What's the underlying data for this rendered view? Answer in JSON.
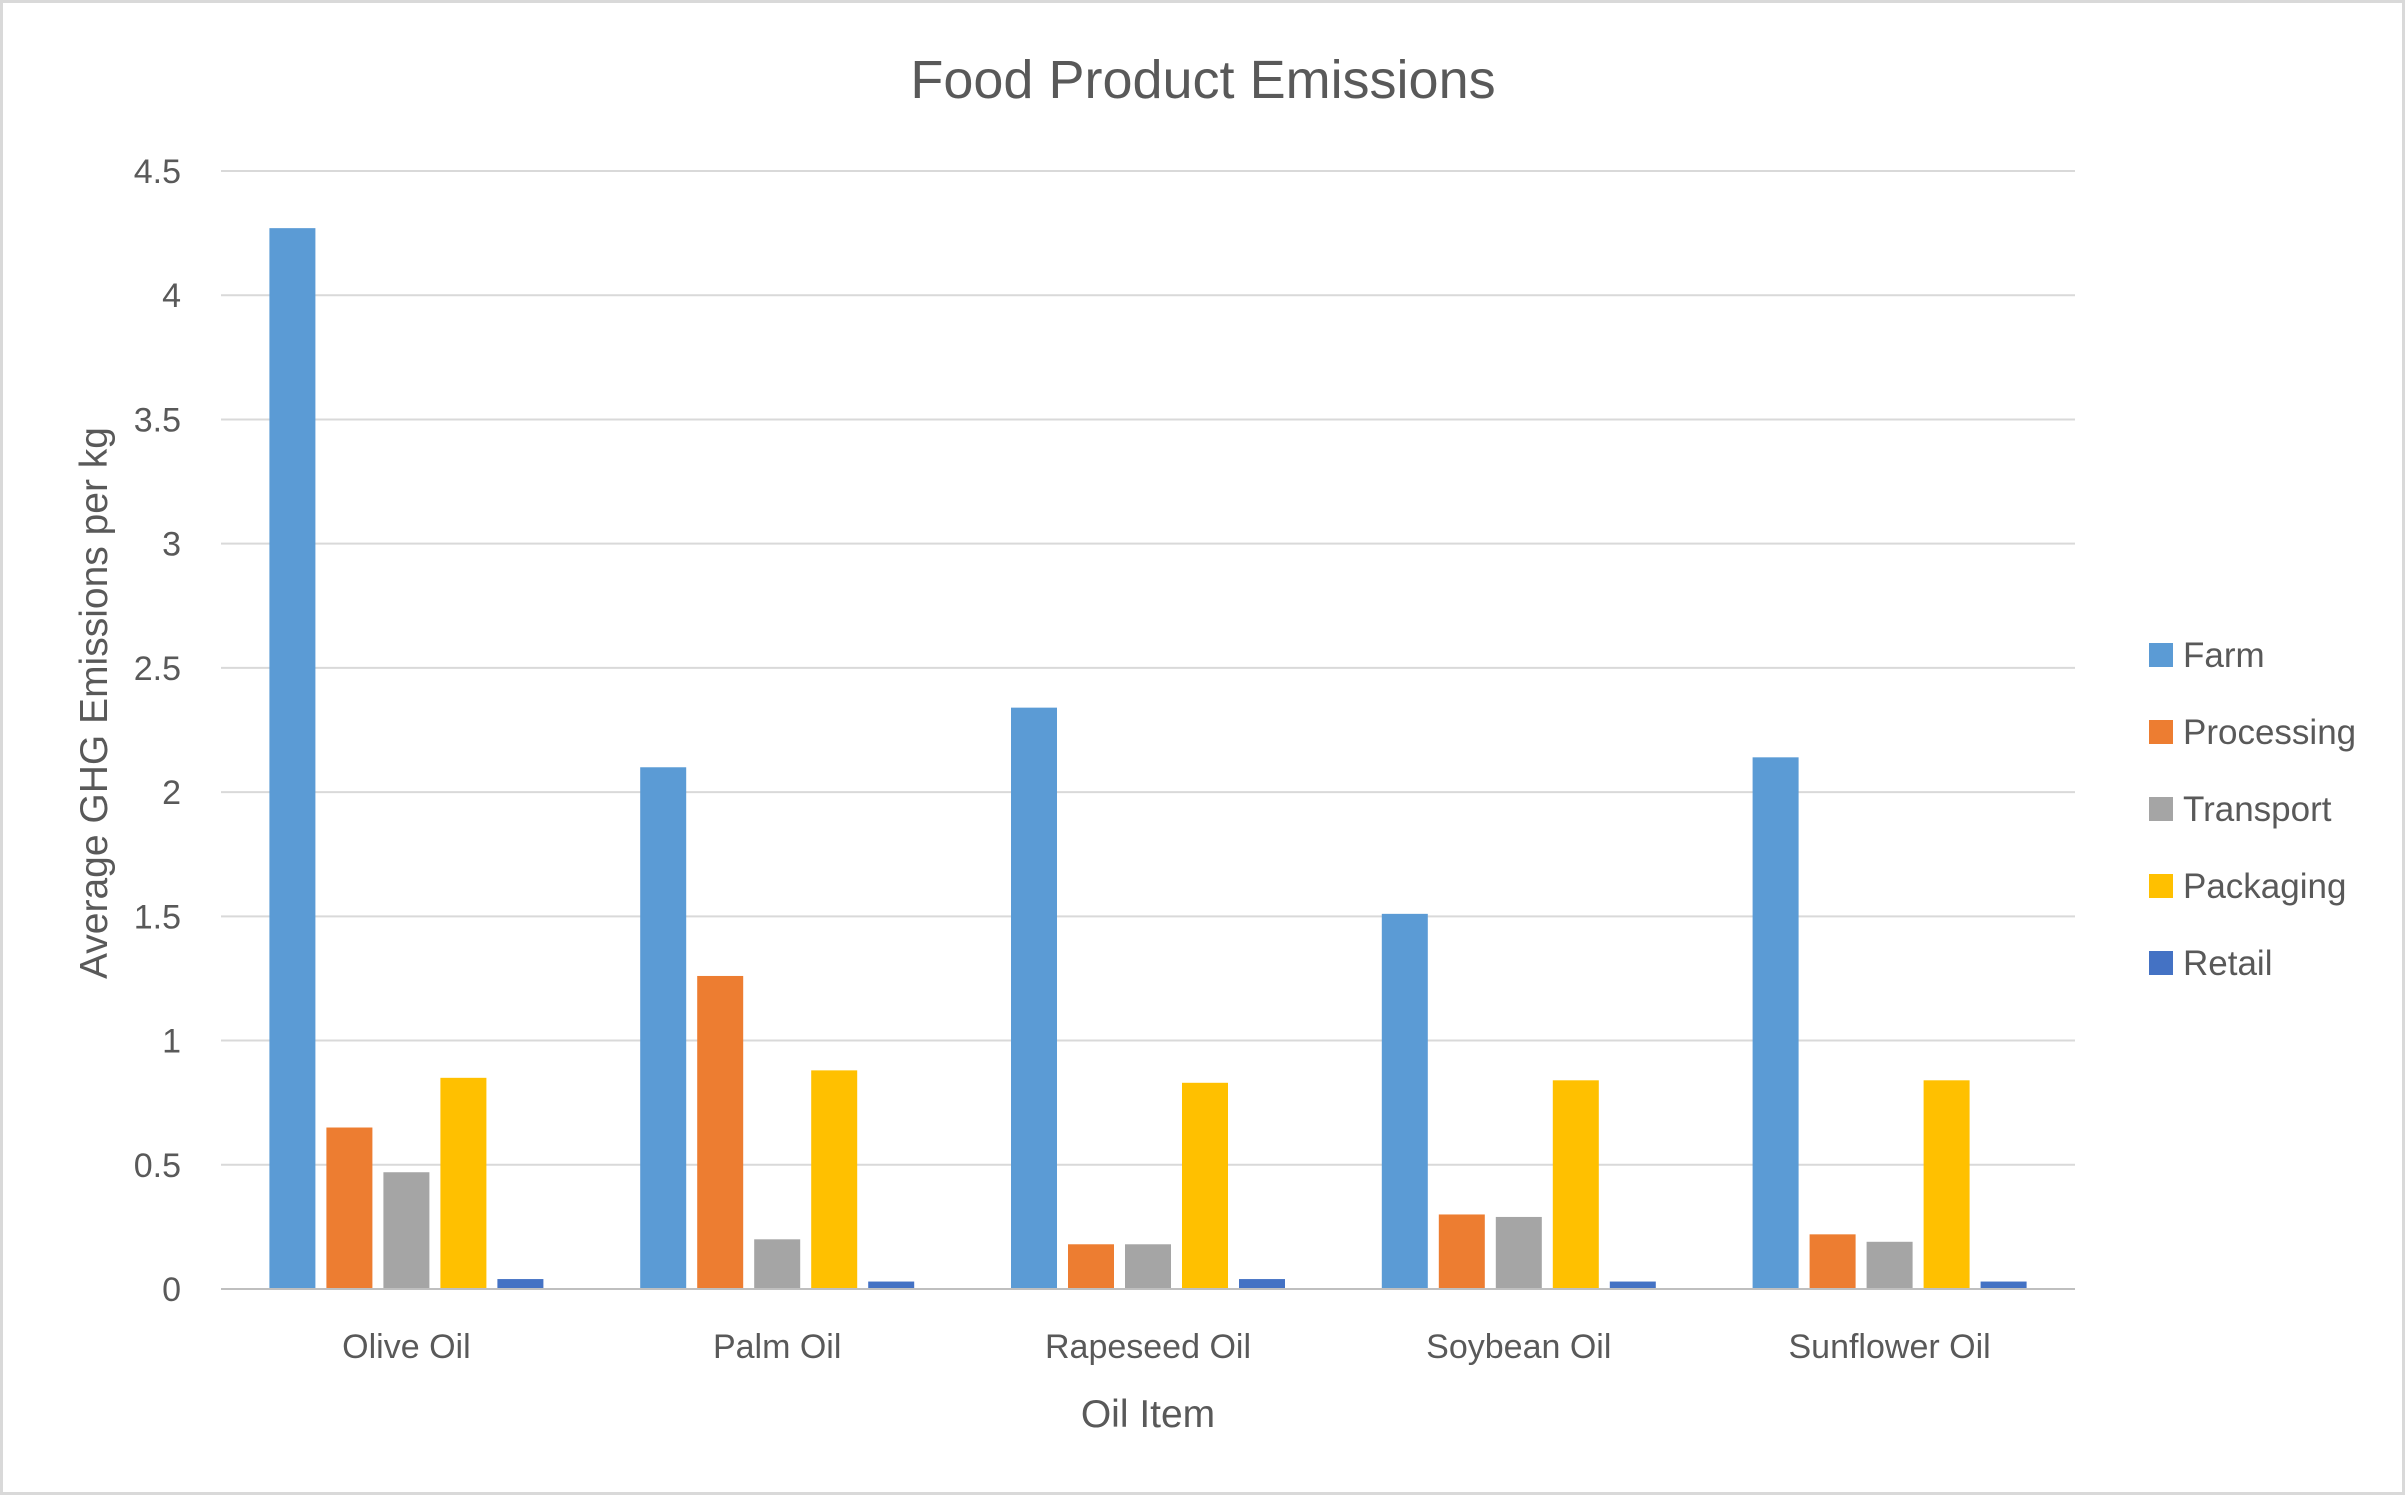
{
  "chart_data": {
    "type": "bar",
    "title": "Food Product Emissions",
    "xlabel": "Oil Item",
    "ylabel": "Average GHG Emissions per kg",
    "ylim": [
      0,
      4.5
    ],
    "yticks": [
      "0",
      "0.5",
      "1",
      "1.5",
      "2",
      "2.5",
      "3",
      "3.5",
      "4",
      "4.5"
    ],
    "grid": true,
    "legend_position": "right",
    "categories": [
      "Olive Oil",
      "Palm Oil",
      "Rapeseed Oil",
      "Soybean Oil",
      "Sunflower Oil"
    ],
    "series": [
      {
        "name": "Farm",
        "color": "#5b9bd5",
        "values": [
          4.27,
          2.1,
          2.34,
          1.51,
          2.14
        ]
      },
      {
        "name": "Processing",
        "color": "#ed7d31",
        "values": [
          0.65,
          1.26,
          0.18,
          0.3,
          0.22
        ]
      },
      {
        "name": "Transport",
        "color": "#a5a5a5",
        "values": [
          0.47,
          0.2,
          0.18,
          0.29,
          0.19
        ]
      },
      {
        "name": "Packaging",
        "color": "#ffc000",
        "values": [
          0.85,
          0.88,
          0.83,
          0.84,
          0.84
        ]
      },
      {
        "name": "Retail",
        "color": "#4472c4",
        "values": [
          0.04,
          0.03,
          0.04,
          0.03,
          0.03
        ]
      }
    ]
  }
}
